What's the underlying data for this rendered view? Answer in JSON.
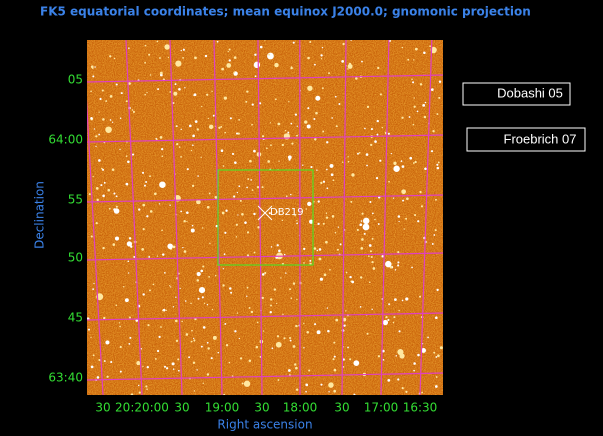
{
  "header": {
    "title": "FK5 equatorial coordinates; mean equinox J2000.0; gnomonic projection"
  },
  "axes": {
    "y_label": "Declination",
    "x_label": "Right ascension",
    "y_ticks": [
      "05",
      "64:00",
      "55",
      "50",
      "45",
      "63:40"
    ],
    "x_ticks": [
      "30",
      "20:20:00",
      "30",
      "19:00",
      "30",
      "18:00",
      "30",
      "17:00",
      "16:30"
    ]
  },
  "object": {
    "label": "DB219"
  },
  "buttons": [
    "Dobashi 05",
    "Froebrich 07"
  ]
}
